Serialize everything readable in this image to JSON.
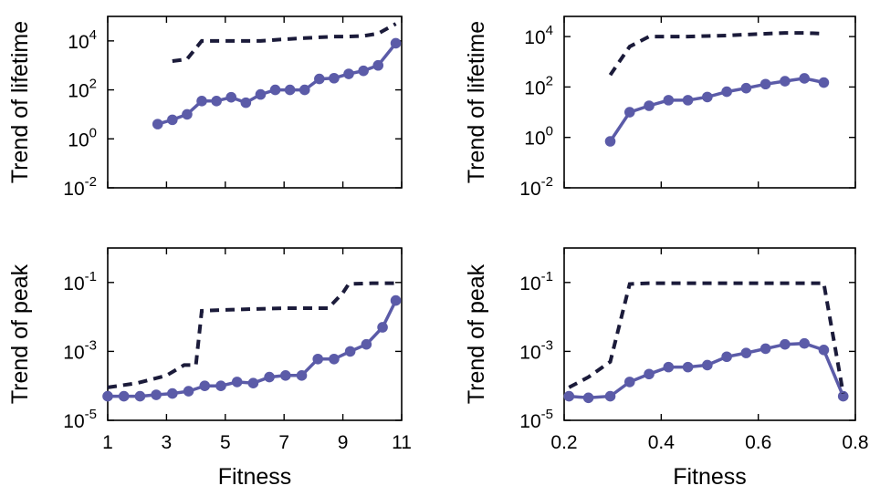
{
  "chart_data": [
    {
      "type": "line",
      "panel": "top-left",
      "ylabel": "Trend of lifetime",
      "xlabel": "",
      "yscale": "log",
      "xlim": [
        1,
        11
      ],
      "ylim_exp": [
        -2,
        5
      ],
      "xticks": [],
      "yticks": [
        {
          "exp": -2,
          "base": "10",
          "sup": "-2"
        },
        {
          "exp": 0,
          "base": "10",
          "sup": "0"
        },
        {
          "exp": 2,
          "base": "10",
          "sup": "2"
        },
        {
          "exp": 4,
          "base": "10",
          "sup": "4"
        }
      ],
      "series": [
        {
          "style": "solid-markers",
          "color": "#5b5ba8",
          "x": [
            2.7,
            3.2,
            3.7,
            4.2,
            4.7,
            5.2,
            5.7,
            6.2,
            6.7,
            7.2,
            7.7,
            8.2,
            8.7,
            9.2,
            9.7,
            10.2,
            10.8
          ],
          "y": [
            4,
            6,
            10,
            35,
            35,
            50,
            30,
            65,
            100,
            100,
            100,
            280,
            300,
            450,
            600,
            1000,
            8000
          ]
        },
        {
          "style": "dashed",
          "color": "#1b1b3a",
          "x": [
            3.2,
            3.7,
            4.2,
            4.7,
            5.2,
            5.7,
            6.2,
            6.7,
            7.2,
            7.7,
            8.2,
            8.7,
            9.2,
            9.7,
            10.2,
            10.8
          ],
          "y": [
            1500,
            1800,
            10000,
            10000,
            10000,
            10000,
            10000,
            11000,
            12000,
            13000,
            14000,
            15000,
            15000,
            16000,
            20000,
            50000
          ]
        }
      ]
    },
    {
      "type": "line",
      "panel": "top-right",
      "ylabel": "Trend of lifetime",
      "xlabel": "",
      "yscale": "log",
      "xlim": [
        0.2,
        0.8
      ],
      "ylim_exp": [
        -2,
        4.8
      ],
      "xticks": [],
      "yticks": [
        {
          "exp": -2,
          "base": "10",
          "sup": "-2"
        },
        {
          "exp": 0,
          "base": "10",
          "sup": "0"
        },
        {
          "exp": 2,
          "base": "10",
          "sup": "2"
        },
        {
          "exp": 4,
          "base": "10",
          "sup": "4"
        }
      ],
      "series": [
        {
          "style": "solid-markers",
          "color": "#5b5ba8",
          "x": [
            0.295,
            0.335,
            0.375,
            0.415,
            0.455,
            0.495,
            0.535,
            0.575,
            0.615,
            0.655,
            0.695,
            0.735
          ],
          "y": [
            0.7,
            10,
            18,
            30,
            30,
            40,
            65,
            90,
            130,
            170,
            220,
            150
          ]
        },
        {
          "style": "dashed",
          "color": "#1b1b3a",
          "x": [
            0.295,
            0.335,
            0.375,
            0.415,
            0.455,
            0.495,
            0.535,
            0.575,
            0.615,
            0.655,
            0.695,
            0.735
          ],
          "y": [
            300,
            4000,
            10000,
            10000,
            10000,
            10500,
            11000,
            12000,
            13000,
            14000,
            14000,
            13000
          ]
        }
      ]
    },
    {
      "type": "line",
      "panel": "bottom-left",
      "ylabel": "Trend of peak",
      "xlabel": "Fitness",
      "yscale": "log",
      "xlim": [
        1,
        11
      ],
      "ylim_exp": [
        -5,
        0
      ],
      "xticks": [
        "1",
        "3",
        "5",
        "7",
        "9",
        "11"
      ],
      "yticks": [
        {
          "exp": -5,
          "base": "10",
          "sup": "-5"
        },
        {
          "exp": -3,
          "base": "10",
          "sup": "-3"
        },
        {
          "exp": -1,
          "base": "10",
          "sup": "-1"
        }
      ],
      "series": [
        {
          "style": "solid-markers",
          "color": "#5b5ba8",
          "x": [
            1.0,
            1.55,
            2.1,
            2.65,
            3.2,
            3.75,
            4.3,
            4.85,
            5.4,
            5.95,
            6.5,
            7.05,
            7.6,
            8.15,
            8.7,
            9.25,
            9.8,
            10.35,
            10.8
          ],
          "y": [
            5e-05,
            5e-05,
            5e-05,
            5.5e-05,
            6e-05,
            7e-05,
            0.0001,
            0.0001,
            0.00013,
            0.00012,
            0.00018,
            0.0002,
            0.0002,
            0.0006,
            0.0006,
            0.001,
            0.0016,
            0.005,
            0.03
          ]
        },
        {
          "style": "dashed",
          "color": "#1b1b3a",
          "x": [
            1.0,
            2.0,
            3.0,
            3.6,
            4.0,
            4.2,
            5.0,
            6.0,
            7.0,
            8.0,
            8.5,
            9.0,
            9.2,
            10.0,
            10.8
          ],
          "y": [
            9e-05,
            0.00012,
            0.0002,
            0.0004,
            0.0004,
            0.015,
            0.016,
            0.017,
            0.018,
            0.018,
            0.018,
            0.05,
            0.09,
            0.095,
            0.095
          ]
        }
      ]
    },
    {
      "type": "line",
      "panel": "bottom-right",
      "ylabel": "Trend of peak",
      "xlabel": "Fitness",
      "yscale": "log",
      "xlim": [
        0.2,
        0.8
      ],
      "ylim_exp": [
        -5,
        0
      ],
      "xticks": [
        "0.2",
        "0.4",
        "0.6",
        "0.8"
      ],
      "yticks": [
        {
          "exp": -5,
          "base": "10",
          "sup": "-5"
        },
        {
          "exp": -3,
          "base": "10",
          "sup": "-3"
        },
        {
          "exp": -1,
          "base": "10",
          "sup": "-1"
        }
      ],
      "series": [
        {
          "style": "solid-markers",
          "color": "#5b5ba8",
          "x": [
            0.21,
            0.25,
            0.295,
            0.335,
            0.375,
            0.415,
            0.455,
            0.495,
            0.535,
            0.575,
            0.615,
            0.655,
            0.695,
            0.735,
            0.775
          ],
          "y": [
            5e-05,
            4.5e-05,
            5e-05,
            0.00013,
            0.00022,
            0.00035,
            0.00035,
            0.0004,
            0.0007,
            0.0009,
            0.0012,
            0.0016,
            0.0017,
            0.0011,
            5e-05
          ]
        },
        {
          "style": "dashed",
          "color": "#1b1b3a",
          "x": [
            0.21,
            0.25,
            0.295,
            0.335,
            0.375,
            0.455,
            0.535,
            0.615,
            0.695,
            0.735,
            0.775
          ],
          "y": [
            9e-05,
            0.00018,
            0.0005,
            0.09,
            0.095,
            0.095,
            0.095,
            0.095,
            0.095,
            0.095,
            6e-05
          ]
        }
      ]
    }
  ]
}
